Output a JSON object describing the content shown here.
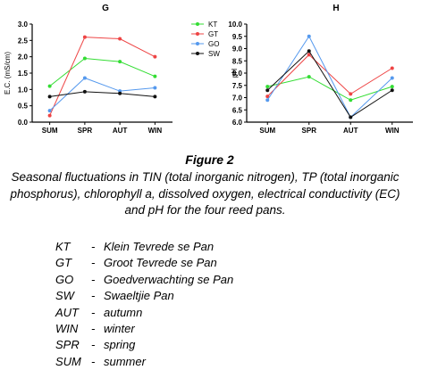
{
  "chart_data": [
    {
      "type": "line",
      "title": "G",
      "xlabel": "",
      "ylabel": "E.C. (mS/cm)",
      "categories": [
        "SUM",
        "SPR",
        "AUT",
        "WIN"
      ],
      "ylim": [
        0,
        3.0
      ],
      "yticks": [
        "0.0",
        "0.5",
        "1.0",
        "1.5",
        "2.0",
        "2.5",
        "3.0"
      ],
      "grid": false,
      "legend": "right",
      "series": [
        {
          "name": "KT",
          "color": "#33dd33",
          "values": [
            1.1,
            1.95,
            1.85,
            1.4
          ]
        },
        {
          "name": "GT",
          "color": "#ee4444",
          "values": [
            0.2,
            2.6,
            2.55,
            2.0
          ]
        },
        {
          "name": "GO",
          "color": "#5599ee",
          "values": [
            0.35,
            1.35,
            0.95,
            1.05
          ]
        },
        {
          "name": "SW",
          "color": "#111111",
          "values": [
            0.78,
            0.93,
            0.88,
            0.78
          ]
        }
      ]
    },
    {
      "type": "line",
      "title": "H",
      "xlabel": "",
      "ylabel": "pH",
      "categories": [
        "SUM",
        "SPR",
        "AUT",
        "WIN"
      ],
      "ylim": [
        6.0,
        10.0
      ],
      "yticks": [
        "6.0",
        "6.5",
        "7.0",
        "7.5",
        "8.0",
        "8.5",
        "9.0",
        "9.5",
        "10.0"
      ],
      "grid": false,
      "series": [
        {
          "name": "KT",
          "color": "#33dd33",
          "values": [
            7.45,
            7.85,
            6.9,
            7.45
          ]
        },
        {
          "name": "GT",
          "color": "#ee4444",
          "values": [
            7.05,
            8.75,
            7.15,
            8.2
          ]
        },
        {
          "name": "GO",
          "color": "#5599ee",
          "values": [
            6.9,
            9.5,
            6.2,
            7.8
          ]
        },
        {
          "name": "SW",
          "color": "#111111",
          "values": [
            7.3,
            8.9,
            6.2,
            7.3
          ]
        }
      ]
    }
  ],
  "caption": {
    "label": "Figure 2",
    "text": "Seasonal fluctuations in TIN (total inorganic nitrogen), TP (total inorganic phosphorus), chlorophyll a, dissolved oxygen, electrical conductivity (EC) and pH for the four reed pans."
  },
  "abbreviations": [
    {
      "key": "KT",
      "sep": "-",
      "value": "Klein Tevrede se Pan"
    },
    {
      "key": "GT",
      "sep": "-",
      "value": "Groot Tevrede se Pan"
    },
    {
      "key": "GO",
      "sep": "-",
      "value": "Goedverwachting se Pan"
    },
    {
      "key": "SW",
      "sep": "-",
      "value": "Swaeltjie Pan"
    },
    {
      "key": "AUT",
      "sep": "-",
      "value": "autumn"
    },
    {
      "key": "WIN",
      "sep": "-",
      "value": "winter"
    },
    {
      "key": "SPR",
      "sep": "-",
      "value": "spring"
    },
    {
      "key": "SUM",
      "sep": "-",
      "value": "summer"
    }
  ]
}
